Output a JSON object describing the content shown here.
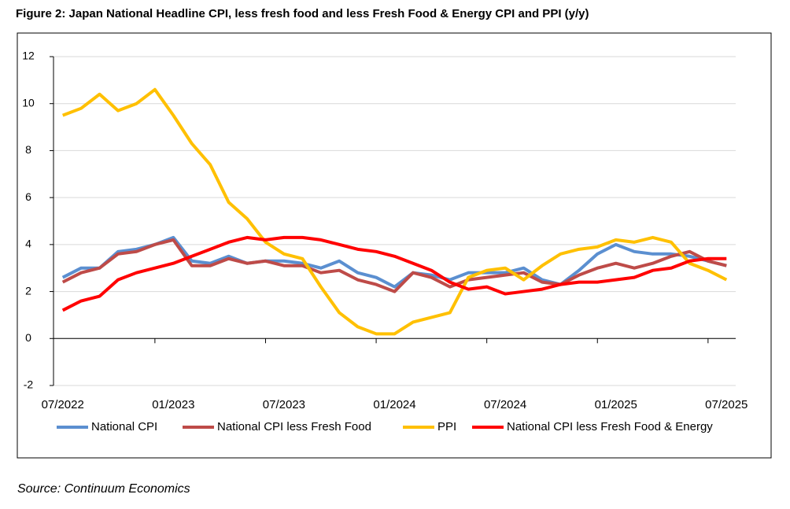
{
  "chart_data": {
    "type": "line",
    "title": "Figure 2: Japan National Headline CPI, less fresh food and less Fresh Food & Energy CPI and PPI (y/y)",
    "source": "Source: Continuum Economics",
    "categories": [
      "07/2022",
      null,
      null,
      null,
      null,
      null,
      "01/2023",
      null,
      null,
      null,
      null,
      null,
      "07/2023",
      null,
      null,
      null,
      null,
      null,
      "01/2024",
      null,
      null,
      null,
      null,
      null,
      "07/2024",
      null,
      null,
      null,
      null,
      null,
      "01/2025",
      null,
      null,
      null,
      null,
      null,
      "07/2025"
    ],
    "series": [
      {
        "name": "National CPI",
        "color": "#5b8fd0",
        "values": [
          2.6,
          3.0,
          3.0,
          3.7,
          3.8,
          4.0,
          4.3,
          3.3,
          3.2,
          3.5,
          3.2,
          3.3,
          3.3,
          3.2,
          3.0,
          3.3,
          2.8,
          2.6,
          2.2,
          2.8,
          2.7,
          2.5,
          2.8,
          2.8,
          2.8,
          3.0,
          2.5,
          2.3,
          2.9,
          3.6,
          4.0,
          3.7,
          3.6,
          3.6,
          3.5,
          3.3,
          3.1
        ]
      },
      {
        "name": "National CPI less Fresh Food",
        "color": "#be4b48",
        "values": [
          2.4,
          2.8,
          3.0,
          3.6,
          3.7,
          4.0,
          4.2,
          3.1,
          3.1,
          3.4,
          3.2,
          3.3,
          3.1,
          3.1,
          2.8,
          2.9,
          2.5,
          2.3,
          2.0,
          2.8,
          2.6,
          2.2,
          2.5,
          2.6,
          2.7,
          2.8,
          2.4,
          2.3,
          2.7,
          3.0,
          3.2,
          3.0,
          3.2,
          3.5,
          3.7,
          3.3,
          3.1
        ]
      },
      {
        "name": "PPI",
        "color": "#ffc000",
        "values": [
          9.5,
          9.8,
          10.4,
          9.7,
          10.0,
          10.6,
          9.5,
          8.3,
          7.4,
          5.8,
          5.1,
          4.1,
          3.6,
          3.4,
          2.2,
          1.1,
          0.5,
          0.2,
          0.2,
          0.7,
          0.9,
          1.1,
          2.6,
          2.9,
          3.0,
          2.5,
          3.1,
          3.6,
          3.8,
          3.9,
          4.2,
          4.1,
          4.3,
          4.1,
          3.2,
          2.9,
          2.5
        ]
      },
      {
        "name": "National CPI less Fresh Food & Energy",
        "color": "#ff0000",
        "values": [
          1.2,
          1.6,
          1.8,
          2.5,
          2.8,
          3.0,
          3.2,
          3.5,
          3.8,
          4.1,
          4.3,
          4.2,
          4.3,
          4.3,
          4.2,
          4.0,
          3.8,
          3.7,
          3.5,
          3.2,
          2.9,
          2.4,
          2.1,
          2.2,
          1.9,
          2.0,
          2.1,
          2.3,
          2.4,
          2.4,
          2.5,
          2.6,
          2.9,
          3.0,
          3.3,
          3.4,
          3.4
        ]
      }
    ],
    "ylim": [
      -2,
      12
    ],
    "yticks": [
      -2,
      0,
      2,
      4,
      6,
      8,
      10,
      12
    ],
    "grid": true,
    "legend": "bottom"
  }
}
